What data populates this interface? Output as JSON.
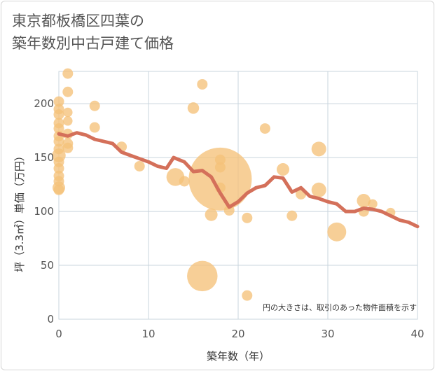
{
  "chart_data": {
    "type": "scatter",
    "title_lines": [
      "東京都板橋区四葉の",
      "築年数別中古戸建て価格"
    ],
    "xlabel": "築年数（年）",
    "ylabel": "坪（3.3㎡）単価（万円）",
    "xlim": [
      0,
      40
    ],
    "ylim": [
      0,
      230
    ],
    "x_ticks": [
      0,
      10,
      20,
      30,
      40
    ],
    "y_ticks": [
      0,
      50,
      100,
      150,
      200
    ],
    "grid": true,
    "note": "円の大きさは、取引のあった物件面積を示す",
    "colors": {
      "bubble": "#f5c27a",
      "line": "#d4705a",
      "grid": "#c9d4de",
      "text": "#555555"
    },
    "series": [
      {
        "kind": "bubble",
        "points": [
          {
            "x": 0,
            "y": 202,
            "s": 1
          },
          {
            "x": 0,
            "y": 195,
            "s": 1
          },
          {
            "x": 0,
            "y": 190,
            "s": 1
          },
          {
            "x": 0,
            "y": 182,
            "s": 1
          },
          {
            "x": 0,
            "y": 177,
            "s": 1
          },
          {
            "x": 0,
            "y": 170,
            "s": 1
          },
          {
            "x": 0,
            "y": 165,
            "s": 1
          },
          {
            "x": 0,
            "y": 158,
            "s": 1
          },
          {
            "x": 0,
            "y": 152,
            "s": 1.3
          },
          {
            "x": 0,
            "y": 146,
            "s": 1
          },
          {
            "x": 0,
            "y": 140,
            "s": 1
          },
          {
            "x": 0,
            "y": 133,
            "s": 1
          },
          {
            "x": 0,
            "y": 128,
            "s": 1
          },
          {
            "x": 0,
            "y": 122,
            "s": 1.2
          },
          {
            "x": 0,
            "y": 120,
            "s": 1
          },
          {
            "x": 1,
            "y": 228,
            "s": 1
          },
          {
            "x": 1,
            "y": 211,
            "s": 1
          },
          {
            "x": 1,
            "y": 192,
            "s": 0.9
          },
          {
            "x": 1,
            "y": 184,
            "s": 0.9
          },
          {
            "x": 1,
            "y": 172,
            "s": 1
          },
          {
            "x": 1,
            "y": 163,
            "s": 1
          },
          {
            "x": 1,
            "y": 159,
            "s": 1
          },
          {
            "x": 4,
            "y": 198,
            "s": 1
          },
          {
            "x": 4,
            "y": 178,
            "s": 1
          },
          {
            "x": 7,
            "y": 160,
            "s": 1
          },
          {
            "x": 9,
            "y": 142,
            "s": 1
          },
          {
            "x": 13,
            "y": 132,
            "s": 1.7
          },
          {
            "x": 14,
            "y": 128,
            "s": 1
          },
          {
            "x": 15,
            "y": 196,
            "s": 1.1
          },
          {
            "x": 16,
            "y": 218,
            "s": 1
          },
          {
            "x": 16,
            "y": 40,
            "s": 2.9
          },
          {
            "x": 17,
            "y": 97,
            "s": 1.2
          },
          {
            "x": 18,
            "y": 130,
            "s": 6
          },
          {
            "x": 18,
            "y": 148,
            "s": 1
          },
          {
            "x": 18,
            "y": 141,
            "s": 1
          },
          {
            "x": 18,
            "y": 122,
            "s": 1
          },
          {
            "x": 19,
            "y": 101,
            "s": 1
          },
          {
            "x": 21,
            "y": 94,
            "s": 1
          },
          {
            "x": 21,
            "y": 22,
            "s": 1
          },
          {
            "x": 23,
            "y": 177,
            "s": 1
          },
          {
            "x": 25,
            "y": 139,
            "s": 1.2
          },
          {
            "x": 26,
            "y": 96,
            "s": 1
          },
          {
            "x": 27,
            "y": 116,
            "s": 1
          },
          {
            "x": 29,
            "y": 158,
            "s": 1.4
          },
          {
            "x": 29,
            "y": 120,
            "s": 1.4
          },
          {
            "x": 31,
            "y": 81,
            "s": 1.8
          },
          {
            "x": 34,
            "y": 110,
            "s": 1.3
          },
          {
            "x": 34,
            "y": 100,
            "s": 1
          },
          {
            "x": 35,
            "y": 107,
            "s": 0.9
          },
          {
            "x": 37,
            "y": 99,
            "s": 0.9
          }
        ]
      },
      {
        "kind": "line",
        "points": [
          {
            "x": 0,
            "y": 172
          },
          {
            "x": 1,
            "y": 170
          },
          {
            "x": 2,
            "y": 173
          },
          {
            "x": 3,
            "y": 171
          },
          {
            "x": 4,
            "y": 167
          },
          {
            "x": 5,
            "y": 165
          },
          {
            "x": 6,
            "y": 163
          },
          {
            "x": 7,
            "y": 155
          },
          {
            "x": 8,
            "y": 152
          },
          {
            "x": 9,
            "y": 149
          },
          {
            "x": 10,
            "y": 146
          },
          {
            "x": 11,
            "y": 142
          },
          {
            "x": 12,
            "y": 140
          },
          {
            "x": 12.8,
            "y": 150
          },
          {
            "x": 14,
            "y": 146
          },
          {
            "x": 15,
            "y": 137
          },
          {
            "x": 16,
            "y": 138
          },
          {
            "x": 17,
            "y": 132
          },
          {
            "x": 18,
            "y": 117
          },
          {
            "x": 19,
            "y": 104
          },
          {
            "x": 20,
            "y": 109
          },
          {
            "x": 21,
            "y": 117
          },
          {
            "x": 22,
            "y": 122
          },
          {
            "x": 23,
            "y": 124
          },
          {
            "x": 24,
            "y": 132
          },
          {
            "x": 25,
            "y": 131
          },
          {
            "x": 26,
            "y": 118
          },
          {
            "x": 27,
            "y": 122
          },
          {
            "x": 28,
            "y": 114
          },
          {
            "x": 29,
            "y": 112
          },
          {
            "x": 30,
            "y": 109
          },
          {
            "x": 31,
            "y": 107
          },
          {
            "x": 32,
            "y": 100
          },
          {
            "x": 33,
            "y": 100
          },
          {
            "x": 34,
            "y": 103
          },
          {
            "x": 35,
            "y": 102
          },
          {
            "x": 36,
            "y": 100
          },
          {
            "x": 37,
            "y": 96
          },
          {
            "x": 38,
            "y": 92
          },
          {
            "x": 39,
            "y": 90
          },
          {
            "x": 40,
            "y": 86
          }
        ]
      }
    ]
  }
}
